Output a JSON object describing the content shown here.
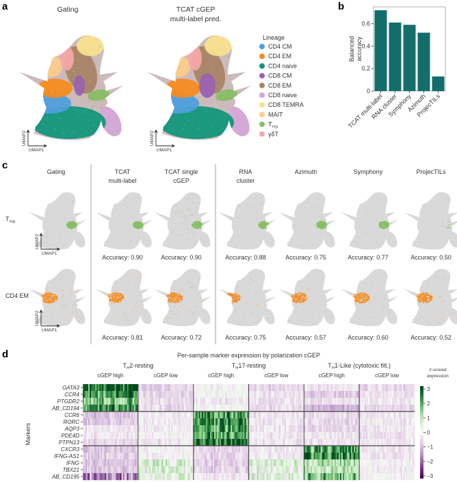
{
  "panel_labels": {
    "a": "a",
    "b": "b",
    "c": "c",
    "d": "d"
  },
  "panel_a": {
    "umaps": [
      {
        "title_lines": [
          "Gating"
        ]
      },
      {
        "title_lines": [
          "TCAT cGEP",
          "multi-label pred."
        ]
      }
    ],
    "axis_x": "UMAP1",
    "axis_y": "UMAP2",
    "legend_title": "Lineage",
    "legend": [
      {
        "label": "CD4 CM",
        "color": "#4f9fdc"
      },
      {
        "label": "CD4 EM",
        "color": "#f68b1f"
      },
      {
        "label": "CD4 naive",
        "color": "#11967a"
      },
      {
        "label": "CD8 CM",
        "color": "#9a62b0"
      },
      {
        "label": "CD8 EM",
        "color": "#a88466"
      },
      {
        "label": "CD8 naive",
        "color": "#d4a6d8"
      },
      {
        "label": "CD8 TEMRA",
        "color": "#f9e08e"
      },
      {
        "label": "MAIT",
        "color": "#fbcb8c"
      },
      {
        "label": "T",
        "sub": "reg",
        "color": "#86bf63"
      },
      {
        "label": "γδT",
        "color": "#f4a8a8"
      }
    ]
  },
  "panel_c": {
    "methods": [
      {
        "title_lines": [
          "Gating"
        ]
      },
      {
        "title_lines": [
          "TCAT",
          "multi-label"
        ]
      },
      {
        "title_lines": [
          "TCAT single",
          "cGEP"
        ]
      },
      {
        "title_lines": [
          "RNA",
          "cluster"
        ]
      },
      {
        "title_lines": [
          "Azimuth"
        ]
      },
      {
        "title_lines": [
          "Symphony"
        ]
      },
      {
        "title_lines": [
          "ProjecTILs"
        ]
      }
    ],
    "rows": [
      {
        "label": "T",
        "sub": "reg",
        "color": "#86bf63",
        "accuracy": [
          "",
          "Accuracy: 0.90",
          "Accuracy: 0.90",
          "Accuracy: 0.88",
          "Accuracy: 0.75",
          "Accuracy: 0.77",
          "Accuracy: 0.50"
        ]
      },
      {
        "label": "CD4 EM",
        "sub": "",
        "color": "#f68b1f",
        "accuracy": [
          "",
          "Accuracy: 0.81",
          "Accuracy: 0.72",
          "Accuracy: 0.75",
          "Accuracy: 0.57",
          "Accuracy: 0.60",
          "Accuracy: 0.52"
        ]
      }
    ],
    "axis_x": "UMAP1",
    "axis_y": "UMAP2",
    "background_color": "#d9d9d9"
  },
  "chart_data": [
    {
      "panel": "b",
      "type": "bar",
      "categories": [
        "TCAT multi-label",
        "RNA cluster",
        "Symphony",
        "Azimuth",
        "ProjecTILs"
      ],
      "values": [
        0.72,
        0.61,
        0.59,
        0.52,
        0.13
      ],
      "ylabel": "Balanced accuracy",
      "ylabel_lines": [
        "Balanced",
        "accuracy"
      ],
      "yticks": [
        "0",
        "0.2",
        "0.4",
        "0.6"
      ],
      "ytick_values": [
        0,
        0.2,
        0.4,
        0.6
      ],
      "ylim": [
        0,
        0.75
      ],
      "color": "#136e6b",
      "grid": false
    },
    {
      "panel": "d",
      "type": "heatmap",
      "title": "Per-sample marker expression by polarization cGEP",
      "groups": [
        {
          "label": "T",
          "sub": "H",
          "rest": "2-resting"
        },
        {
          "label": "T",
          "sub": "H",
          "rest": "17-resting"
        },
        {
          "label": "T",
          "sub": "H",
          "rest": "1-Like (cytotoxic filt.)"
        }
      ],
      "subgroups": [
        "cGEP high",
        "cGEP low",
        "cGEP high",
        "cGEP low",
        "cGEP high",
        "cGEP low"
      ],
      "ylabel": "Markers",
      "rows": [
        "GATA3",
        "CCR4",
        "PTGDR2",
        "AB_CD194",
        "CCR6",
        "RORC",
        "AQP3",
        "PDE4D",
        "PTPN13",
        "CXCR3",
        "IFNG-AS1",
        "IFNG",
        "TBX21",
        "AB_CD195"
      ],
      "row_group_breaks_after": [
        4,
        9
      ],
      "block_mean_zscore": [
        [
          2.5,
          -0.6,
          0.0,
          -0.5,
          -0.3,
          -0.5
        ],
        [
          2.0,
          -0.5,
          0.0,
          -0.3,
          -0.7,
          -0.4
        ],
        [
          1.5,
          -0.4,
          -0.3,
          -0.3,
          -0.3,
          -0.3
        ],
        [
          2.0,
          -0.5,
          0.0,
          -0.4,
          -1.0,
          -0.5
        ],
        [
          -0.8,
          -0.2,
          2.0,
          -0.3,
          -0.5,
          -0.3
        ],
        [
          -0.7,
          -0.2,
          2.0,
          -0.2,
          -0.5,
          -0.3
        ],
        [
          -0.3,
          -0.2,
          2.0,
          -0.3,
          -0.6,
          -0.3
        ],
        [
          -0.3,
          -0.1,
          2.0,
          -0.3,
          -0.3,
          -0.4
        ],
        [
          -0.5,
          -0.3,
          2.5,
          -0.3,
          -0.3,
          -0.3
        ],
        [
          -0.8,
          -0.1,
          -0.5,
          -0.2,
          2.0,
          -0.3
        ],
        [
          -0.7,
          -0.1,
          -0.5,
          -0.2,
          2.2,
          -0.3
        ],
        [
          -0.8,
          0.5,
          -0.6,
          0.5,
          1.0,
          -0.1
        ],
        [
          -0.8,
          0.3,
          -0.6,
          0.2,
          0.8,
          -0.2
        ],
        [
          -1.5,
          0.3,
          -0.3,
          0.3,
          1.5,
          0.0
        ]
      ],
      "colorbar_label_lines": [
        "z-scored",
        "expression"
      ],
      "colorbar_label_italic": "z",
      "colorbar_ticks": [
        "3",
        "2",
        "1",
        "0",
        "−1",
        "−2",
        "−3"
      ],
      "colorbar_tick_values": [
        3,
        2,
        1,
        0,
        -1,
        -2,
        -3
      ],
      "zlim": [
        -3,
        3
      ],
      "colormap": "PRGn"
    }
  ]
}
